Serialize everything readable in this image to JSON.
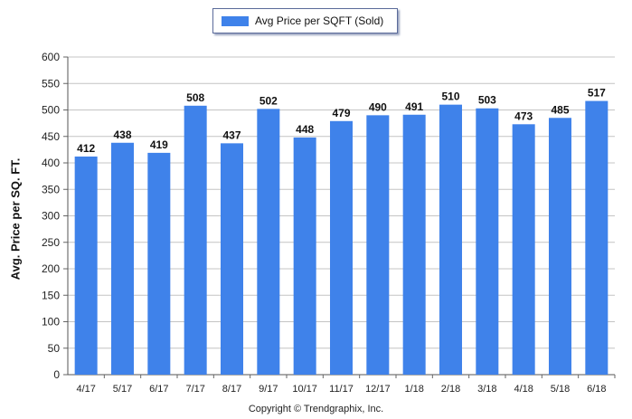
{
  "legend": {
    "label": "Avg Price per SQFT (Sold)"
  },
  "copyright": "Copyright © Trendgraphix, Inc.",
  "chart_data": {
    "type": "bar",
    "title": "",
    "xlabel": "",
    "ylabel": "Avg. Price per SQ. FT.",
    "categories": [
      "4/17",
      "5/17",
      "6/17",
      "7/17",
      "8/17",
      "9/17",
      "10/17",
      "11/17",
      "12/17",
      "1/18",
      "2/18",
      "3/18",
      "4/18",
      "5/18",
      "6/18"
    ],
    "series": [
      {
        "name": "Avg Price per SQFT (Sold)",
        "values": [
          412,
          438,
          419,
          508,
          437,
          502,
          448,
          479,
          490,
          491,
          510,
          503,
          473,
          485,
          517
        ],
        "color": "#3f82ea"
      }
    ],
    "ylim": [
      0,
      600
    ],
    "yticks": [
      0,
      50,
      100,
      150,
      200,
      250,
      300,
      350,
      400,
      450,
      500,
      550,
      600
    ],
    "grid": true,
    "legend_position": "top-center",
    "data_labels": true
  }
}
